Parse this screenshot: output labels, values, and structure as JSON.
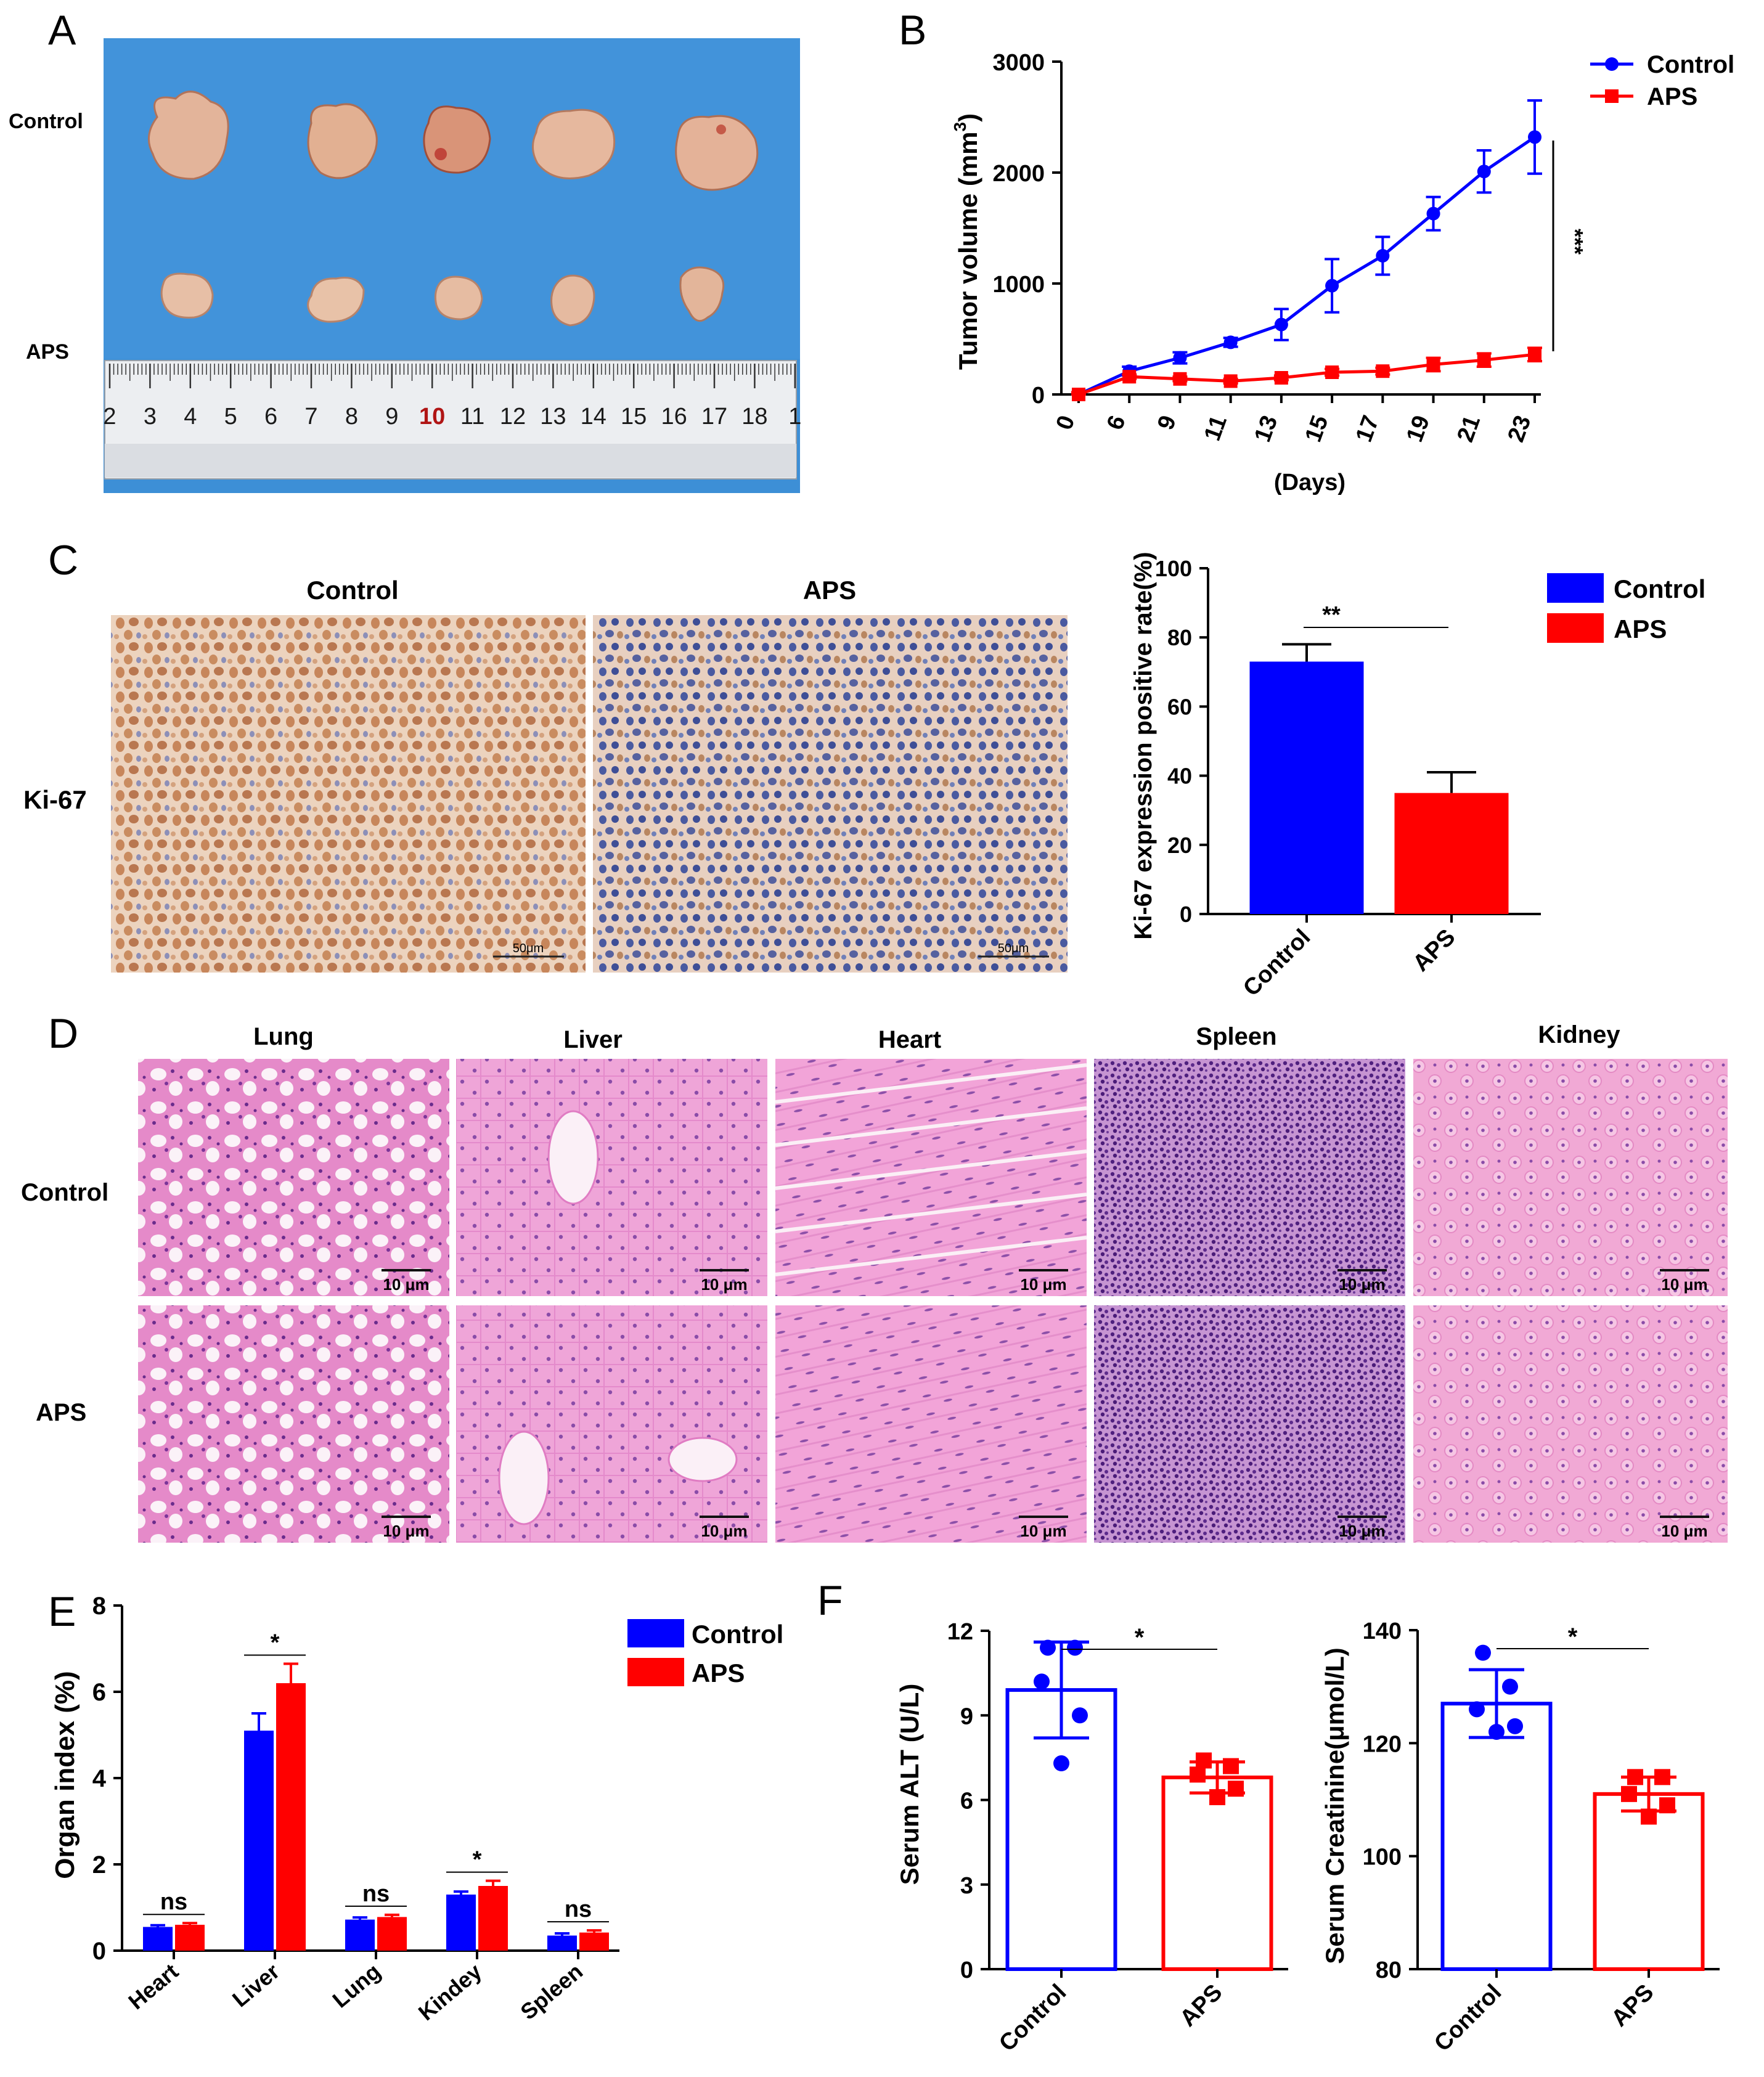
{
  "panels": {
    "a": {
      "letter": "A",
      "row_labels": [
        "Control",
        "APS"
      ],
      "ruler_numbers": [
        "2",
        "3",
        "4",
        "5",
        "6",
        "7",
        "8",
        "9",
        "10",
        "11",
        "12",
        "13",
        "14",
        "15",
        "16",
        "17",
        "18",
        "1"
      ],
      "highlight_number": "10"
    },
    "c": {
      "letter": "C",
      "stain_label": "Ki-67",
      "image_titles": [
        "Control",
        "APS"
      ],
      "scale_label": "50μm"
    },
    "d": {
      "letter": "D",
      "organs": [
        "Lung",
        "Liver",
        "Heart",
        "Spleen",
        "Kidney"
      ],
      "row_labels": [
        "Control",
        "APS"
      ],
      "scale_label": "10 μm"
    }
  },
  "colors": {
    "control": "#0000FF",
    "aps": "#FF0000",
    "tissue_he": "#F2AEDD",
    "tissue_ihc": "#E9CDB5",
    "drape": "#3D8FD6"
  },
  "chart_data": [
    {
      "id": "B",
      "letter": "B",
      "type": "line",
      "ylabel": "Tumor volume (mm",
      "ylabel_sup": "3",
      "ylabel_close": ")",
      "xlabel": "(Days)",
      "x": [
        0,
        6,
        9,
        11,
        13,
        15,
        17,
        19,
        21,
        23
      ],
      "ylim": [
        0,
        3000
      ],
      "yticks": [
        0,
        1000,
        2000,
        3000
      ],
      "series": [
        {
          "name": "Control",
          "values": [
            0,
            210,
            330,
            470,
            630,
            980,
            1250,
            1630,
            2010,
            2320
          ],
          "errors": [
            20,
            40,
            50,
            40,
            140,
            240,
            170,
            150,
            190,
            330
          ]
        },
        {
          "name": "APS",
          "values": [
            0,
            160,
            140,
            120,
            150,
            200,
            210,
            270,
            310,
            360
          ],
          "errors": [
            20,
            20,
            20,
            20,
            20,
            30,
            30,
            60,
            60,
            60
          ]
        }
      ],
      "significance": "***"
    },
    {
      "id": "C",
      "type": "bar",
      "ylabel": "Ki-67 expression positive rate(%)",
      "categories": [
        "Control",
        "APS"
      ],
      "values": [
        73,
        35
      ],
      "errors": [
        5,
        6
      ],
      "ylim": [
        0,
        100
      ],
      "yticks": [
        0,
        20,
        40,
        60,
        80,
        100
      ],
      "legend": [
        "Control",
        "APS"
      ],
      "significance": "**"
    },
    {
      "id": "E",
      "letter": "E",
      "type": "bar",
      "ylabel": "Organ index (%)",
      "categories": [
        "Heart",
        "Liver",
        "Lung",
        "Kindey",
        "Spleen"
      ],
      "ylim": [
        0,
        8
      ],
      "yticks": [
        0,
        2,
        4,
        6,
        8
      ],
      "series": [
        {
          "name": "Control",
          "values": [
            0.55,
            5.1,
            0.72,
            1.3,
            0.35
          ],
          "errors": [
            0.04,
            0.4,
            0.05,
            0.07,
            0.05
          ]
        },
        {
          "name": "APS",
          "values": [
            0.6,
            6.2,
            0.78,
            1.5,
            0.42
          ],
          "errors": [
            0.04,
            0.45,
            0.05,
            0.12,
            0.05
          ]
        }
      ],
      "significance": [
        "ns",
        "*",
        "ns",
        "*",
        "ns"
      ]
    },
    {
      "id": "F1",
      "letter": "F",
      "type": "bar",
      "ylabel": "Serum ALT (U/L)",
      "categories": [
        "Control",
        "APS"
      ],
      "values": [
        9.9,
        6.8
      ],
      "errors": [
        1.7,
        0.55
      ],
      "points": [
        [
          11.4,
          11.4,
          10.2,
          9.0,
          7.3
        ],
        [
          7.4,
          7.2,
          6.9,
          6.4,
          6.1
        ]
      ],
      "ylim": [
        0,
        12
      ],
      "yticks": [
        0,
        3,
        6,
        9,
        12
      ],
      "significance": "*"
    },
    {
      "id": "F2",
      "type": "bar",
      "ylabel": "Serum Creatinine(μmol/L)",
      "categories": [
        "Control",
        "APS"
      ],
      "values": [
        127,
        111
      ],
      "errors": [
        6,
        3
      ],
      "points": [
        [
          136,
          130,
          126,
          123,
          122
        ],
        [
          114,
          114,
          111,
          109,
          107
        ]
      ],
      "ylim": [
        80,
        140
      ],
      "yticks": [
        80,
        100,
        120,
        140
      ],
      "significance": "*"
    }
  ]
}
